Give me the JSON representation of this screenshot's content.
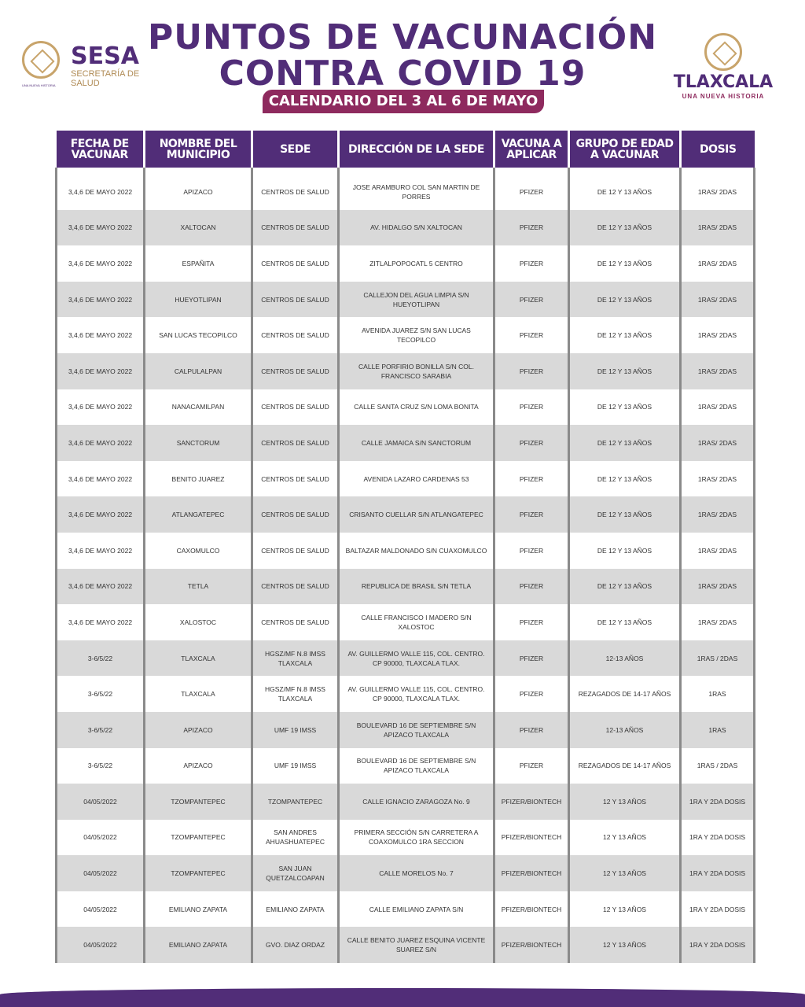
{
  "header": {
    "title_line1": "PUNTOS DE VACUNACIÓN",
    "title_line2": "CONTRA COVID 19",
    "subtitle": "CALENDARIO DEL 3 AL 6 DE MAYO"
  },
  "logos": {
    "sesa": {
      "name": "SESA",
      "sub": "SECRETARÍA DE SALUD",
      "tag": "UNA NUEVA HISTORIA"
    },
    "tlaxcala": {
      "name": "TLAXCALA",
      "sub": "UNA NUEVA HISTORIA"
    }
  },
  "colors": {
    "purple": "#512d78",
    "magenta": "#8e2a5e",
    "gold": "#c8a46b",
    "row_gray": "#d9d9d9"
  },
  "table": {
    "columns": [
      "FECHA DE VACUNAR",
      "NOMBRE DEL MUNICIPIO",
      "SEDE",
      "DIRECCIÓN DE LA SEDE",
      "VACUNA A APLICAR",
      "GRUPO DE EDAD A VACUNAR",
      "DOSIS"
    ],
    "rows": [
      [
        "3,4,6 DE MAYO 2022",
        "APIZACO",
        "CENTROS DE SALUD",
        "JOSE ARAMBURO COL SAN MARTIN DE PORRES",
        "PFIZER",
        "DE 12 Y 13 AÑOS",
        "1RAS/ 2DAS"
      ],
      [
        "3,4,6 DE MAYO 2022",
        "XALTOCAN",
        "CENTROS DE SALUD",
        "AV. HIDALGO S/N XALTOCAN",
        "PFIZER",
        "DE 12 Y 13 AÑOS",
        "1RAS/ 2DAS"
      ],
      [
        "3,4,6 DE MAYO 2022",
        "ESPAÑITA",
        "CENTROS DE SALUD",
        "ZITLALPOPOCATL 5 CENTRO",
        "PFIZER",
        "DE 12 Y 13 AÑOS",
        "1RAS/ 2DAS"
      ],
      [
        "3,4,6 DE MAYO 2022",
        "HUEYOTLIPAN",
        "CENTROS DE SALUD",
        "CALLEJON DEL AGUA LIMPIA S/N HUEYOTLIPAN",
        "PFIZER",
        "DE 12 Y 13 AÑOS",
        "1RAS/ 2DAS"
      ],
      [
        "3,4,6 DE MAYO 2022",
        "SAN LUCAS TECOPILCO",
        "CENTROS DE SALUD",
        "AVENIDA JUAREZ S/N SAN LUCAS TECOPILCO",
        "PFIZER",
        "DE 12 Y 13 AÑOS",
        "1RAS/ 2DAS"
      ],
      [
        "3,4,6 DE MAYO 2022",
        "CALPULALPAN",
        "CENTROS DE SALUD",
        "CALLE PORFIRIO BONILLA S/N COL. FRANCISCO SARABIA",
        "PFIZER",
        "DE 12 Y 13 AÑOS",
        "1RAS/ 2DAS"
      ],
      [
        "3,4,6 DE MAYO 2022",
        "NANACAMILPAN",
        "CENTROS DE SALUD",
        "CALLE SANTA CRUZ S/N LOMA BONITA",
        "PFIZER",
        "DE 12 Y 13 AÑOS",
        "1RAS/ 2DAS"
      ],
      [
        "3,4,6 DE MAYO 2022",
        "SANCTORUM",
        "CENTROS DE SALUD",
        "CALLE JAMAICA  S/N SANCTORUM",
        "PFIZER",
        "DE 12 Y 13 AÑOS",
        "1RAS/ 2DAS"
      ],
      [
        "3,4,6 DE MAYO 2022",
        "BENITO JUAREZ",
        "CENTROS DE SALUD",
        "AVENIDA  LAZARO CARDENAS 53",
        "PFIZER",
        "DE 12 Y 13 AÑOS",
        "1RAS/ 2DAS"
      ],
      [
        "3,4,6 DE MAYO 2022",
        "ATLANGATEPEC",
        "CENTROS DE SALUD",
        "CRISANTO CUELLAR S/N ATLANGATEPEC",
        "PFIZER",
        "DE 12 Y 13 AÑOS",
        "1RAS/ 2DAS"
      ],
      [
        "3,4,6 DE MAYO 2022",
        "CAXOMULCO",
        "CENTROS DE SALUD",
        "BALTAZAR MALDONADO S/N CUAXOMULCO",
        "PFIZER",
        "DE 12 Y 13 AÑOS",
        "1RAS/ 2DAS"
      ],
      [
        "3,4,6 DE MAYO 2022",
        "TETLA",
        "CENTROS DE SALUD",
        "REPUBLICA DE BRASIL S/N TETLA",
        "PFIZER",
        "DE 12 Y 13 AÑOS",
        "1RAS/ 2DAS"
      ],
      [
        "3,4,6 DE MAYO 2022",
        "XALOSTOC",
        "CENTROS DE SALUD",
        "CALLE FRANCISCO I MADERO S/N XALOSTOC",
        "PFIZER",
        "DE 12 Y 13 AÑOS",
        "1RAS/ 2DAS"
      ],
      [
        "3-6/5/22",
        "TLAXCALA",
        "HGSZ/MF N.8 IMSS TLAXCALA",
        "AV. GUILLERMO VALLE 115, COL. CENTRO. CP 90000, TLAXCALA TLAX.",
        "PFIZER",
        "12-13 AÑOS",
        "1RAS / 2DAS"
      ],
      [
        "3-6/5/22",
        "TLAXCALA",
        "HGSZ/MF N.8 IMSS TLAXCALA",
        "AV. GUILLERMO VALLE 115, COL. CENTRO. CP 90000, TLAXCALA TLAX.",
        "PFIZER",
        "REZAGADOS DE 14-17 AÑOS",
        "1RAS"
      ],
      [
        "3-6/5/22",
        "APIZACO",
        "UMF 19 IMSS",
        "BOULEVARD 16 DE SEPTIEMBRE S/N APIZACO TLAXCALA",
        "PFIZER",
        "12-13 AÑOS",
        "1RAS"
      ],
      [
        "3-6/5/22",
        "APIZACO",
        "UMF 19 IMSS",
        "BOULEVARD 16 DE SEPTIEMBRE S/N APIZACO TLAXCALA",
        "PFIZER",
        "REZAGADOS DE 14-17 AÑOS",
        "1RAS / 2DAS"
      ],
      [
        "04/05/2022",
        "TZOMPANTEPEC",
        "TZOMPANTEPEC",
        "CALLE IGNACIO ZARAGOZA No. 9",
        "PFIZER/BIONTECH",
        "12 Y 13 AÑOS",
        "1RA Y 2DA DOSIS"
      ],
      [
        "04/05/2022",
        "TZOMPANTEPEC",
        "SAN ANDRES AHUASHUATEPEC",
        "PRIMERA SECCIÓN S/N CARRETERA A COAXOMULCO 1RA SECCION",
        "PFIZER/BIONTECH",
        "12 Y 13 AÑOS",
        "1RA Y 2DA DOSIS"
      ],
      [
        "04/05/2022",
        "TZOMPANTEPEC",
        "SAN JUAN QUETZALCOAPAN",
        "CALLE MORELOS No. 7",
        "PFIZER/BIONTECH",
        "12 Y 13 AÑOS",
        "1RA Y 2DA DOSIS"
      ],
      [
        "04/05/2022",
        "EMILIANO ZAPATA",
        "EMILIANO ZAPATA",
        "CALLE EMILIANO ZAPATA S/N",
        "PFIZER/BIONTECH",
        "12 Y 13 AÑOS",
        "1RA Y 2DA DOSIS"
      ],
      [
        "04/05/2022",
        "EMILIANO ZAPATA",
        "GVO. DIAZ ORDAZ",
        "CALLE BENITO JUAREZ ESQUINA VICENTE SUAREZ S/N",
        "PFIZER/BIONTECH",
        "12 Y 13 AÑOS",
        "1RA Y 2DA DOSIS"
      ]
    ]
  }
}
